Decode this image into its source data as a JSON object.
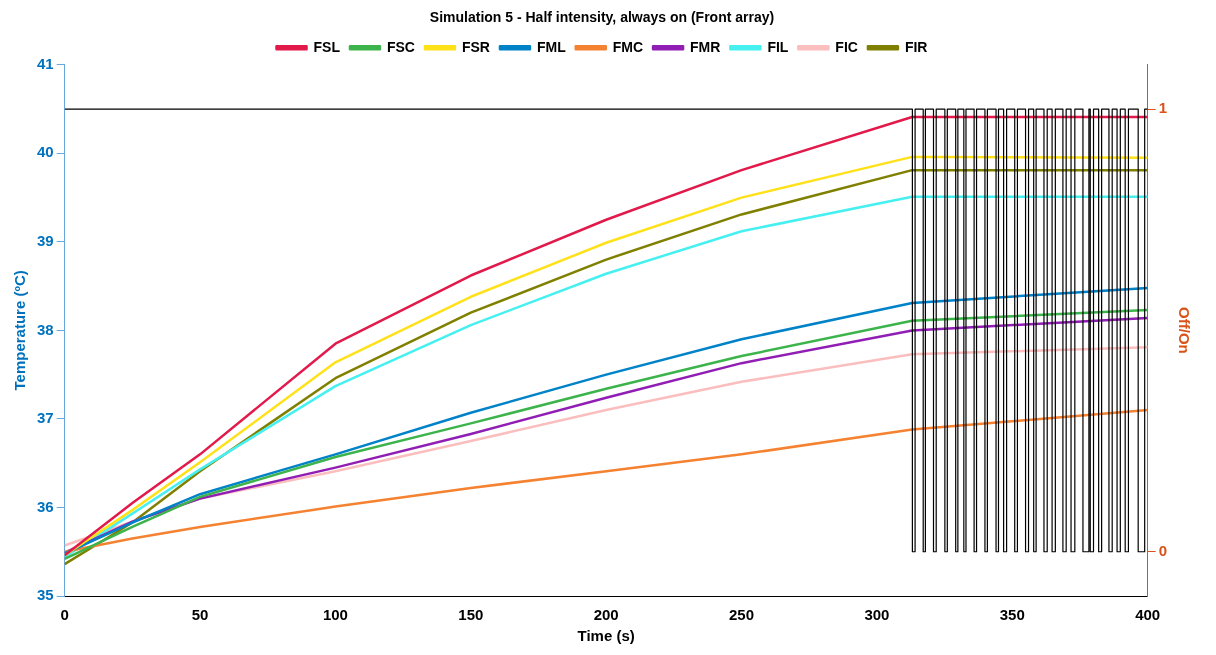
{
  "chart_data": {
    "type": "line",
    "title": "Simulation 5 - Half intensity, always on (Front array)",
    "xlabel": "Time (s)",
    "ylabel": "Temperature (ºC)",
    "y2label": "Off/On",
    "x": [
      0,
      25,
      50,
      100,
      150,
      200,
      250,
      313,
      400
    ],
    "series": [
      {
        "name": "FSL",
        "color": "#e2194b",
        "values": [
          35.46,
          36.05,
          36.6,
          37.85,
          38.62,
          39.25,
          39.81,
          40.41,
          40.41
        ]
      },
      {
        "name": "FSC",
        "color": "#3cb44b",
        "values": [
          35.42,
          35.78,
          36.12,
          36.57,
          36.95,
          37.34,
          37.71,
          38.11,
          38.23
        ]
      },
      {
        "name": "FSR",
        "color": "#ffe119",
        "values": [
          35.46,
          35.97,
          36.51,
          37.64,
          38.38,
          38.99,
          39.5,
          39.96,
          39.95
        ]
      },
      {
        "name": "FML",
        "color": "#0082c8",
        "values": [
          35.48,
          35.83,
          36.15,
          36.6,
          37.07,
          37.5,
          37.9,
          38.31,
          38.48
        ]
      },
      {
        "name": "FMC",
        "color": "#f58231",
        "values": [
          35.5,
          35.65,
          35.78,
          36.01,
          36.22,
          36.41,
          36.6,
          36.88,
          37.1
        ]
      },
      {
        "name": "FMR",
        "color": "#911eb4",
        "values": [
          35.49,
          35.84,
          36.1,
          36.45,
          36.83,
          37.24,
          37.63,
          38.0,
          38.14
        ]
      },
      {
        "name": "FIL",
        "color": "#46f0f0",
        "values": [
          35.44,
          35.93,
          36.43,
          37.37,
          38.06,
          38.64,
          39.12,
          39.51,
          39.51
        ]
      },
      {
        "name": "FIC",
        "color": "#fabebe",
        "values": [
          35.57,
          35.84,
          36.1,
          36.41,
          36.75,
          37.1,
          37.42,
          37.73,
          37.81
        ]
      },
      {
        "name": "FIR",
        "color": "#808000",
        "values": [
          35.36,
          35.83,
          36.41,
          37.46,
          38.2,
          38.8,
          39.31,
          39.81,
          39.81
        ]
      },
      {
        "type": "step",
        "axis": "y2",
        "color": "#000000",
        "x": [
          0,
          313.1,
          314.1,
          317.1,
          317.9,
          320.9,
          321.9,
          325.1,
          326.0,
          329.1,
          329.9,
          332.1,
          332.9,
          335.9,
          336.8,
          339.9,
          340.8,
          344.0,
          344.9,
          346.8,
          347.9,
          350.9,
          351.9,
          354.9,
          356.0,
          357.9,
          358.8,
          361.7,
          362.9,
          364.7,
          365.9,
          368.7,
          369.9,
          371.7,
          373.1,
          376.1,
          378.3,
          378.8,
          380.0,
          381.9,
          383.0,
          385.7,
          386.9,
          388.7,
          389.9,
          391.7,
          392.9,
          396.5,
          398.9,
          400
        ],
        "values": [
          1,
          0,
          1,
          0,
          1,
          0,
          1,
          0,
          1,
          0,
          1,
          0,
          1,
          0,
          1,
          0,
          1,
          0,
          1,
          0,
          1,
          0,
          1,
          0,
          1,
          0,
          1,
          0,
          1,
          0,
          1,
          0,
          1,
          0,
          1,
          0,
          1,
          0,
          1,
          0,
          1,
          0,
          1,
          0,
          1,
          0,
          1,
          0,
          1,
          1
        ]
      }
    ],
    "xlim": [
      0,
      400
    ],
    "xticks": [
      0,
      50,
      100,
      150,
      200,
      250,
      300,
      350,
      400
    ],
    "ylim": [
      35,
      41
    ],
    "yticks": [
      35,
      36,
      37,
      38,
      39,
      40,
      41
    ],
    "y2lim": [
      -0.1,
      1.1
    ],
    "y2ticks": [
      0,
      1
    ],
    "grid": false,
    "legend": "top",
    "marker": "none",
    "line_style": "solid"
  }
}
